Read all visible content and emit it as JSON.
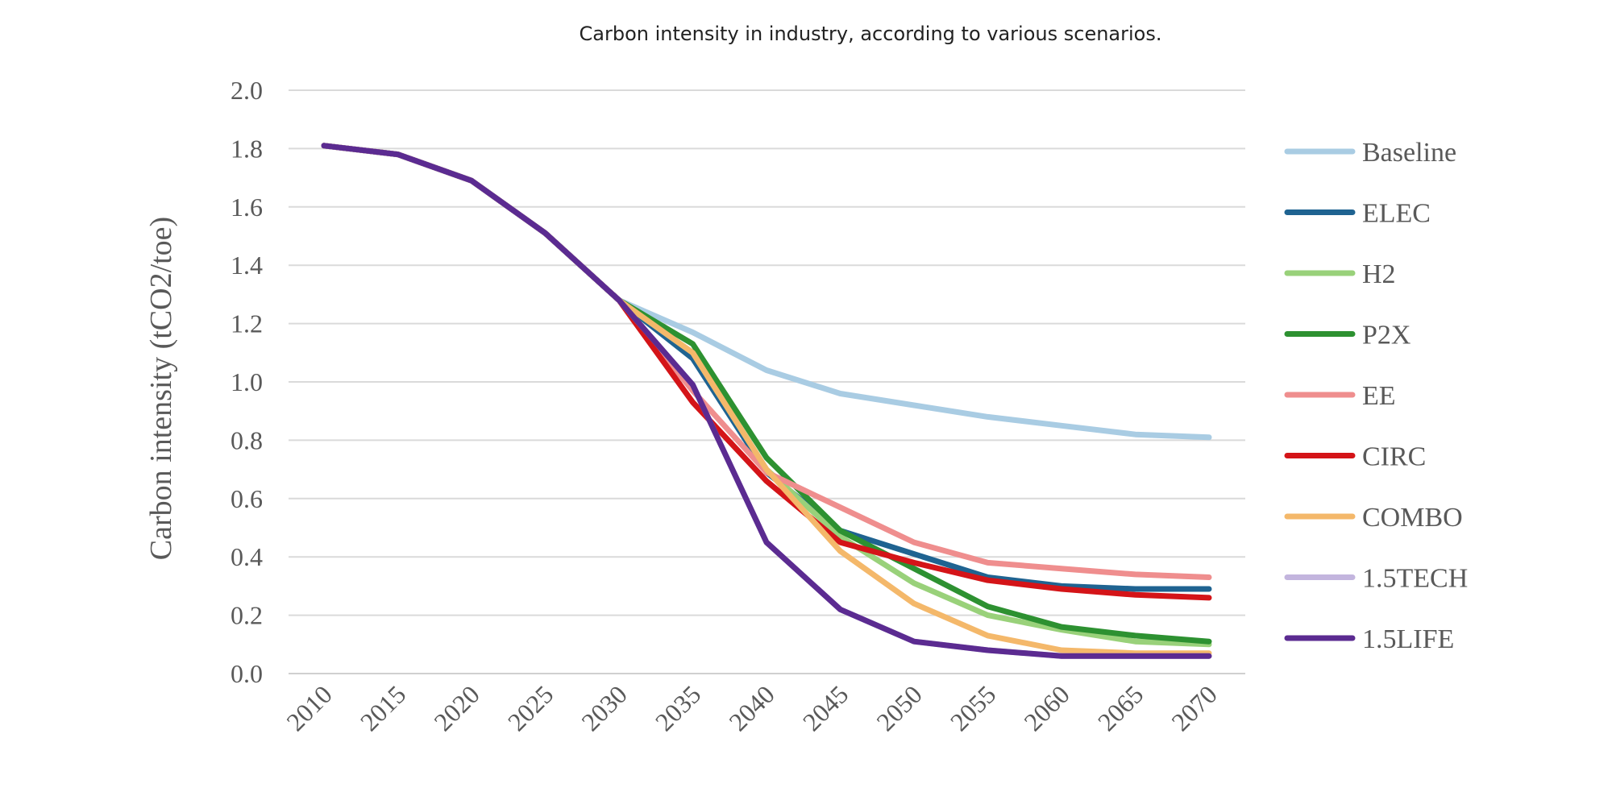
{
  "chart_data": {
    "type": "line",
    "title": "Carbon intensity in industry, according to various scenarios.",
    "xlabel": "",
    "ylabel": "Carbon intensity  (tCO2/toe)",
    "x": [
      "2010",
      "2015",
      "2020",
      "2025",
      "2030",
      "2035",
      "2040",
      "2045",
      "2050",
      "2055",
      "2060",
      "2065",
      "2070"
    ],
    "y_ticks": [
      "0.0",
      "0.2",
      "0.4",
      "0.6",
      "0.8",
      "1.0",
      "1.2",
      "1.4",
      "1.6",
      "1.8",
      "2.0"
    ],
    "ylim": [
      0,
      2.0
    ],
    "grid": "horizontal",
    "legend_position": "right",
    "series": [
      {
        "name": "Baseline",
        "color": "#a9cce3",
        "values": [
          1.81,
          1.78,
          1.69,
          1.51,
          1.28,
          1.17,
          1.04,
          0.96,
          0.92,
          0.88,
          0.85,
          0.82,
          0.81
        ]
      },
      {
        "name": "ELEC",
        "color": "#1f6391",
        "values": [
          1.81,
          1.78,
          1.69,
          1.51,
          1.28,
          1.08,
          0.69,
          0.49,
          0.41,
          0.33,
          0.3,
          0.29,
          0.29
        ]
      },
      {
        "name": "H2",
        "color": "#99d17a",
        "values": [
          1.81,
          1.78,
          1.69,
          1.51,
          1.28,
          1.1,
          0.7,
          0.47,
          0.31,
          0.2,
          0.15,
          0.11,
          0.1
        ]
      },
      {
        "name": "P2X",
        "color": "#2d9131",
        "values": [
          1.81,
          1.78,
          1.69,
          1.51,
          1.28,
          1.13,
          0.74,
          0.49,
          0.36,
          0.23,
          0.16,
          0.13,
          0.11
        ]
      },
      {
        "name": "EE",
        "color": "#ef8e8e",
        "values": [
          1.81,
          1.78,
          1.69,
          1.51,
          1.28,
          0.97,
          0.69,
          0.57,
          0.45,
          0.38,
          0.36,
          0.34,
          0.33
        ]
      },
      {
        "name": "CIRC",
        "color": "#d41418",
        "values": [
          1.81,
          1.78,
          1.69,
          1.51,
          1.28,
          0.93,
          0.66,
          0.45,
          0.38,
          0.32,
          0.29,
          0.27,
          0.26
        ]
      },
      {
        "name": "COMBO",
        "color": "#f4b86a",
        "values": [
          1.81,
          1.78,
          1.69,
          1.51,
          1.28,
          1.1,
          0.7,
          0.42,
          0.24,
          0.13,
          0.08,
          0.07,
          0.07
        ]
      },
      {
        "name": "1.5TECH",
        "color": "#c3b5de",
        "values": [
          1.81,
          1.78,
          1.69,
          1.51,
          1.28,
          0.99,
          0.45,
          0.22,
          0.11,
          0.08,
          0.06,
          0.06,
          0.06
        ]
      },
      {
        "name": "1.5LIFE",
        "color": "#5b2b91",
        "values": [
          1.81,
          1.78,
          1.69,
          1.51,
          1.28,
          0.99,
          0.45,
          0.22,
          0.11,
          0.08,
          0.06,
          0.06,
          0.06
        ]
      }
    ]
  }
}
